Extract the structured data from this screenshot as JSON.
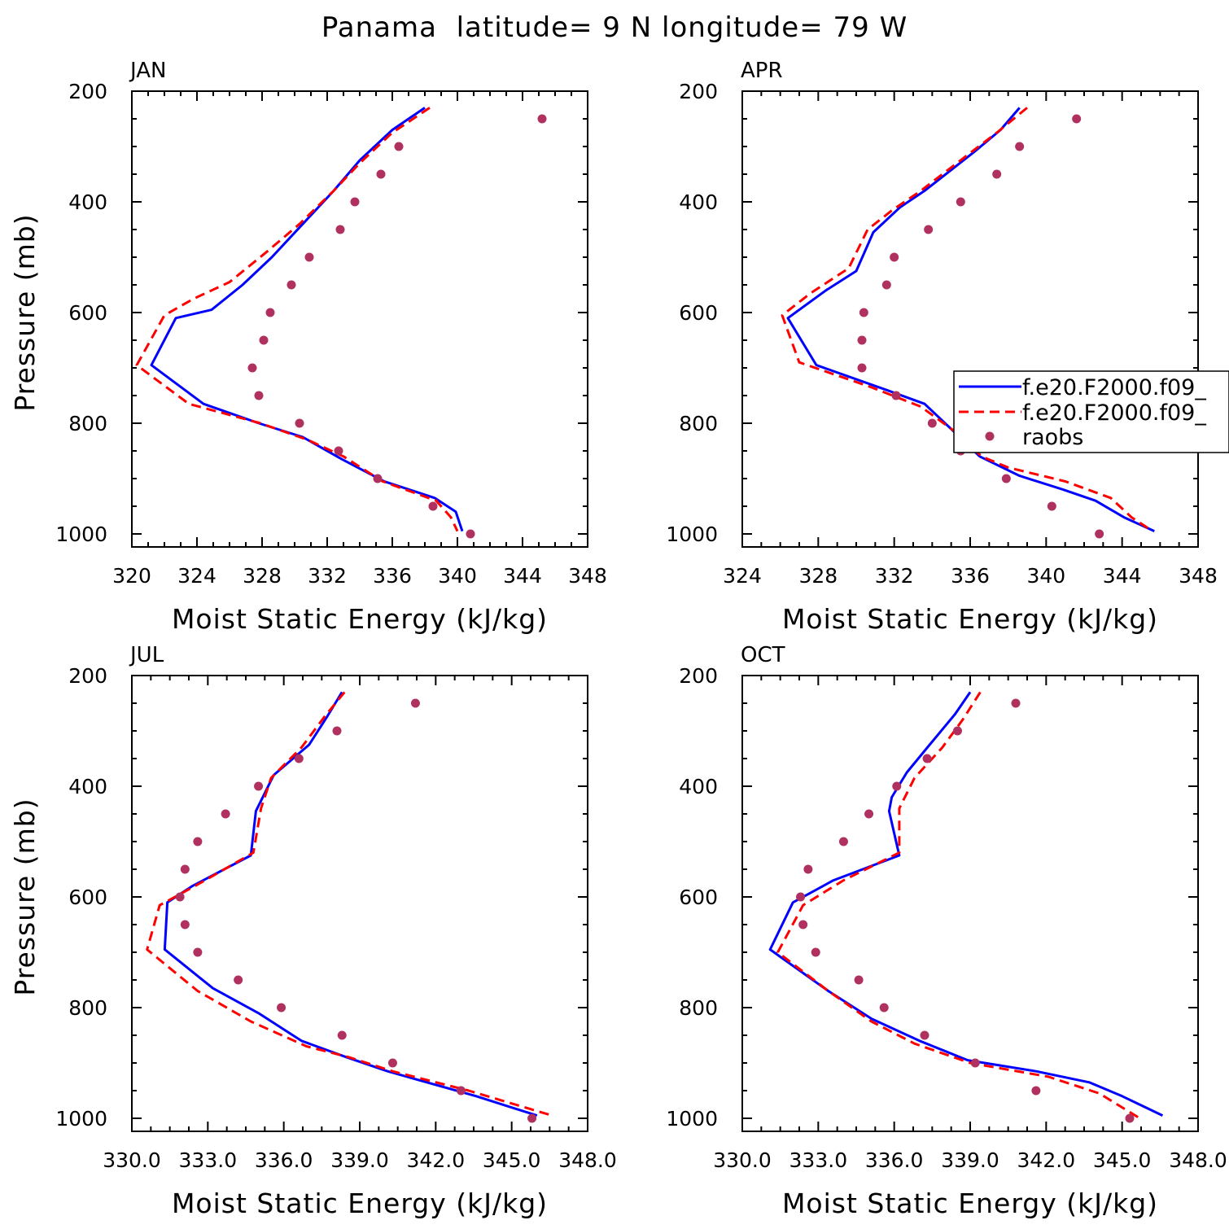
{
  "title": "Panama  latitude= 9 N longitude= 79 W",
  "colors": {
    "model1": "#0000ff",
    "model2": "#ff0000",
    "obs": "#b03060"
  },
  "legend": {
    "entries": [
      "f.e20.F2000.f09_",
      "f.e20.F2000.f09_",
      "raobs"
    ]
  },
  "chart_data": [
    {
      "type": "line",
      "title": "JAN",
      "xlabel": "Moist Static Energy (kJ/kg)",
      "ylabel": "Pressure (mb)",
      "xlim": [
        320,
        348
      ],
      "ylim": [
        200,
        1000
      ],
      "xticks": [
        "320",
        "324",
        "328",
        "332",
        "336",
        "340",
        "344",
        "348"
      ],
      "yticks": [
        "200",
        "400",
        "600",
        "800",
        "1000"
      ],
      "series": [
        {
          "name": "f.e20.F2000.f09_",
          "style": "solid",
          "points": [
            [
              338,
              230
            ],
            [
              336,
              270
            ],
            [
              334,
              325
            ],
            [
              332.4,
              380
            ],
            [
              330.5,
              440
            ],
            [
              328.6,
              500
            ],
            [
              326.8,
              550
            ],
            [
              324.9,
              595
            ],
            [
              322.7,
              610
            ],
            [
              321.2,
              695
            ],
            [
              324.4,
              765
            ],
            [
              327.8,
              800
            ],
            [
              330.5,
              825
            ],
            [
              332.9,
              865
            ],
            [
              335.5,
              905
            ],
            [
              338.6,
              935
            ],
            [
              339.9,
              960
            ],
            [
              340.3,
              995
            ]
          ]
        },
        {
          "name": "f.e20.F2000.f09_",
          "style": "dashed",
          "points": [
            [
              338.3,
              230
            ],
            [
              336,
              275
            ],
            [
              334,
              330
            ],
            [
              332.4,
              380
            ],
            [
              330.3,
              440
            ],
            [
              328.3,
              490
            ],
            [
              326,
              545
            ],
            [
              323.8,
              575
            ],
            [
              322,
              605
            ],
            [
              320.3,
              695
            ],
            [
              323.5,
              765
            ],
            [
              327.9,
              800
            ],
            [
              330.8,
              830
            ],
            [
              333,
              860
            ],
            [
              335.4,
              905
            ],
            [
              338.7,
              940
            ],
            [
              339.6,
              970
            ],
            [
              340,
              995
            ]
          ]
        },
        {
          "name": "raobs",
          "style": "dots",
          "points": [
            [
              345.2,
              250
            ],
            [
              336.4,
              300
            ],
            [
              335.3,
              350
            ],
            [
              333.7,
              400
            ],
            [
              332.8,
              450
            ],
            [
              330.9,
              500
            ],
            [
              329.8,
              550
            ],
            [
              328.5,
              600
            ],
            [
              328.1,
              650
            ],
            [
              327.4,
              700
            ],
            [
              327.8,
              750
            ],
            [
              330.3,
              800
            ],
            [
              332.7,
              850
            ],
            [
              335.1,
              900
            ],
            [
              338.5,
              950
            ],
            [
              340.8,
              1000
            ]
          ]
        }
      ]
    },
    {
      "type": "line",
      "title": "APR",
      "xlabel": "Moist Static Energy (kJ/kg)",
      "ylabel": "",
      "xlim": [
        324,
        348
      ],
      "ylim": [
        200,
        1000
      ],
      "xticks": [
        "324",
        "328",
        "332",
        "336",
        "340",
        "344",
        "348"
      ],
      "yticks": [
        "200",
        "400",
        "600",
        "800",
        "1000"
      ],
      "series": [
        {
          "name": "f.e20.F2000.f09_",
          "style": "solid",
          "points": [
            [
              338.6,
              230
            ],
            [
              337.6,
              270
            ],
            [
              336.2,
              310
            ],
            [
              333.6,
              380
            ],
            [
              332.3,
              410
            ],
            [
              330.9,
              455
            ],
            [
              330,
              525
            ],
            [
              328.4,
              560
            ],
            [
              326.4,
              610
            ],
            [
              327.9,
              695
            ],
            [
              331.6,
              740
            ],
            [
              333.6,
              765
            ],
            [
              335.6,
              830
            ],
            [
              336.5,
              860
            ],
            [
              338.6,
              895
            ],
            [
              340.9,
              920
            ],
            [
              342.6,
              940
            ],
            [
              344.1,
              970
            ],
            [
              345.7,
              995
            ]
          ]
        },
        {
          "name": "f.e20.F2000.f09_",
          "style": "dashed",
          "points": [
            [
              339,
              230
            ],
            [
              337.4,
              275
            ],
            [
              335.3,
              330
            ],
            [
              333.4,
              380
            ],
            [
              331.9,
              415
            ],
            [
              330.6,
              450
            ],
            [
              329.6,
              520
            ],
            [
              327.6,
              565
            ],
            [
              326.1,
              605
            ],
            [
              327,
              690
            ],
            [
              330.8,
              735
            ],
            [
              333.4,
              770
            ],
            [
              335.4,
              820
            ],
            [
              336.6,
              860
            ],
            [
              338,
              880
            ],
            [
              341,
              905
            ],
            [
              343.4,
              935
            ],
            [
              344.5,
              970
            ],
            [
              345.6,
              995
            ]
          ]
        },
        {
          "name": "raobs",
          "style": "dots",
          "points": [
            [
              341.6,
              250
            ],
            [
              338.6,
              300
            ],
            [
              337.4,
              350
            ],
            [
              335.5,
              400
            ],
            [
              333.8,
              450
            ],
            [
              332,
              500
            ],
            [
              331.6,
              550
            ],
            [
              330.4,
              600
            ],
            [
              330.3,
              650
            ],
            [
              330.3,
              700
            ],
            [
              332.1,
              750
            ],
            [
              334,
              800
            ],
            [
              335.5,
              850
            ],
            [
              337.9,
              900
            ],
            [
              340.3,
              950
            ],
            [
              342.8,
              1000
            ]
          ]
        }
      ]
    },
    {
      "type": "line",
      "title": "JUL",
      "xlabel": "Moist Static Energy (kJ/kg)",
      "ylabel": "Pressure (mb)",
      "xlim": [
        330,
        348
      ],
      "ylim": [
        200,
        1000
      ],
      "xticks": [
        "330.0",
        "333.0",
        "336.0",
        "339.0",
        "342.0",
        "345.0",
        "348.0"
      ],
      "yticks": [
        "200",
        "400",
        "600",
        "800",
        "1000"
      ],
      "series": [
        {
          "name": "f.e20.F2000.f09_",
          "style": "solid",
          "points": [
            [
              338.3,
              230
            ],
            [
              337.7,
              275
            ],
            [
              337,
              325
            ],
            [
              335.6,
              380
            ],
            [
              334.9,
              445
            ],
            [
              334.7,
              525
            ],
            [
              332.4,
              580
            ],
            [
              331.4,
              610
            ],
            [
              331.3,
              695
            ],
            [
              333.2,
              765
            ],
            [
              335,
              810
            ],
            [
              336.7,
              860
            ],
            [
              338.5,
              890
            ],
            [
              340.1,
              915
            ],
            [
              343.6,
              960
            ],
            [
              346,
              995
            ]
          ]
        },
        {
          "name": "f.e20.F2000.f09_",
          "style": "dashed",
          "points": [
            [
              338.4,
              230
            ],
            [
              337.6,
              275
            ],
            [
              336.7,
              330
            ],
            [
              335.5,
              385
            ],
            [
              335.1,
              440
            ],
            [
              334.8,
              520
            ],
            [
              332.7,
              575
            ],
            [
              331.1,
              615
            ],
            [
              330.6,
              695
            ],
            [
              332.6,
              770
            ],
            [
              334.7,
              825
            ],
            [
              336.9,
              870
            ],
            [
              338.6,
              890
            ],
            [
              340.3,
              915
            ],
            [
              343.3,
              950
            ],
            [
              346.6,
              995
            ]
          ]
        },
        {
          "name": "raobs",
          "style": "dots",
          "points": [
            [
              341.2,
              250
            ],
            [
              338.1,
              300
            ],
            [
              336.6,
              350
            ],
            [
              335,
              400
            ],
            [
              333.7,
              450
            ],
            [
              332.6,
              500
            ],
            [
              332.1,
              550
            ],
            [
              331.9,
              600
            ],
            [
              332.1,
              650
            ],
            [
              332.6,
              700
            ],
            [
              334.2,
              750
            ],
            [
              335.9,
              800
            ],
            [
              338.3,
              850
            ],
            [
              340.3,
              900
            ],
            [
              343,
              950
            ],
            [
              345.8,
              1000
            ]
          ]
        }
      ]
    },
    {
      "type": "line",
      "title": "OCT",
      "xlabel": "Moist Static Energy (kJ/kg)",
      "ylabel": "",
      "xlim": [
        330,
        348
      ],
      "ylim": [
        200,
        1000
      ],
      "xticks": [
        "330.0",
        "333.0",
        "336.0",
        "339.0",
        "342.0",
        "345.0",
        "348.0"
      ],
      "yticks": [
        "200",
        "400",
        "600",
        "800",
        "1000"
      ],
      "series": [
        {
          "name": "f.e20.F2000.f09_",
          "style": "solid",
          "points": [
            [
              339,
              230
            ],
            [
              338.4,
              270
            ],
            [
              337.4,
              325
            ],
            [
              336.5,
              375
            ],
            [
              335.9,
              420
            ],
            [
              335.8,
              445
            ],
            [
              336.2,
              525
            ],
            [
              333.6,
              570
            ],
            [
              332,
              610
            ],
            [
              331.1,
              695
            ],
            [
              333.4,
              770
            ],
            [
              335.1,
              820
            ],
            [
              337,
              860
            ],
            [
              338.9,
              895
            ],
            [
              341.6,
              915
            ],
            [
              343.7,
              935
            ],
            [
              345,
              960
            ],
            [
              346.6,
              995
            ]
          ]
        },
        {
          "name": "f.e20.F2000.f09_",
          "style": "dashed",
          "points": [
            [
              339.4,
              230
            ],
            [
              338.7,
              280
            ],
            [
              337.9,
              330
            ],
            [
              336.8,
              385
            ],
            [
              336.2,
              440
            ],
            [
              336.2,
              520
            ],
            [
              334,
              570
            ],
            [
              332.4,
              615
            ],
            [
              331.4,
              700
            ],
            [
              333.4,
              770
            ],
            [
              335.1,
              825
            ],
            [
              336.8,
              865
            ],
            [
              339,
              900
            ],
            [
              342.1,
              925
            ],
            [
              344.1,
              955
            ],
            [
              345.7,
              1000
            ]
          ]
        },
        {
          "name": "raobs",
          "style": "dots",
          "points": [
            [
              340.8,
              250
            ],
            [
              338.5,
              300
            ],
            [
              337.3,
              350
            ],
            [
              336.1,
              400
            ],
            [
              335,
              450
            ],
            [
              334,
              500
            ],
            [
              332.6,
              550
            ],
            [
              332.3,
              600
            ],
            [
              332.4,
              650
            ],
            [
              332.9,
              700
            ],
            [
              334.6,
              750
            ],
            [
              335.6,
              800
            ],
            [
              337.2,
              850
            ],
            [
              339.2,
              900
            ],
            [
              341.6,
              950
            ],
            [
              345.3,
              1000
            ]
          ]
        }
      ]
    }
  ]
}
